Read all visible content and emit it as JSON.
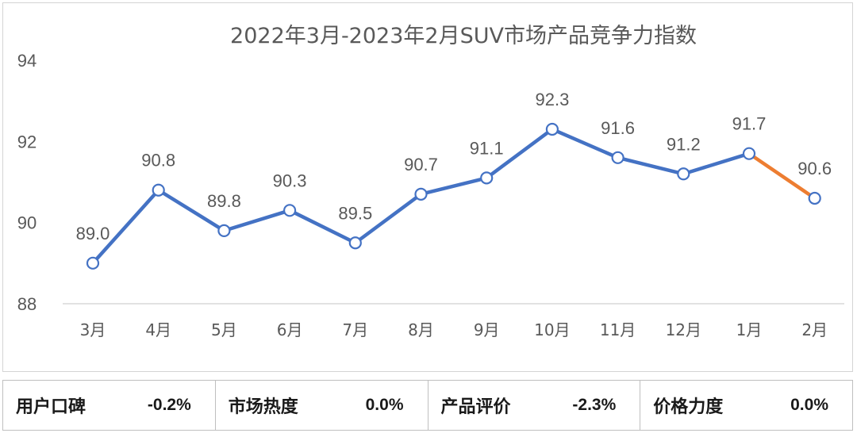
{
  "chart_data": {
    "type": "line",
    "title": "2022年3月-2023年2月SUV市场产品竞争力指数",
    "categories": [
      "3月",
      "4月",
      "5月",
      "6月",
      "7月",
      "8月",
      "9月",
      "10月",
      "11月",
      "12月",
      "1月",
      "2月"
    ],
    "values": [
      89.0,
      90.8,
      89.8,
      90.3,
      89.5,
      90.7,
      91.1,
      92.3,
      91.6,
      91.2,
      91.7,
      90.6
    ],
    "data_labels": [
      "89.0",
      "90.8",
      "89.8",
      "90.3",
      "89.5",
      "90.7",
      "91.1",
      "92.3",
      "91.6",
      "91.2",
      "91.7",
      "90.6"
    ],
    "ylim": [
      88,
      94
    ],
    "yticks": [
      "88",
      "90",
      "92",
      "94"
    ],
    "xlabel": "",
    "ylabel": "",
    "grid": false,
    "colors": {
      "line": "#4472C4",
      "last_segment": "#ED7D31",
      "marker_fill": "#ffffff",
      "drop_line": "#c9d7ef",
      "axis": "#d9d9d9"
    }
  },
  "metrics": [
    {
      "label": "用户口碑",
      "value": "-0.2%"
    },
    {
      "label": "市场热度",
      "value": "0.0%"
    },
    {
      "label": "产品评价",
      "value": "-2.3%"
    },
    {
      "label": "价格力度",
      "value": "0.0%"
    }
  ]
}
